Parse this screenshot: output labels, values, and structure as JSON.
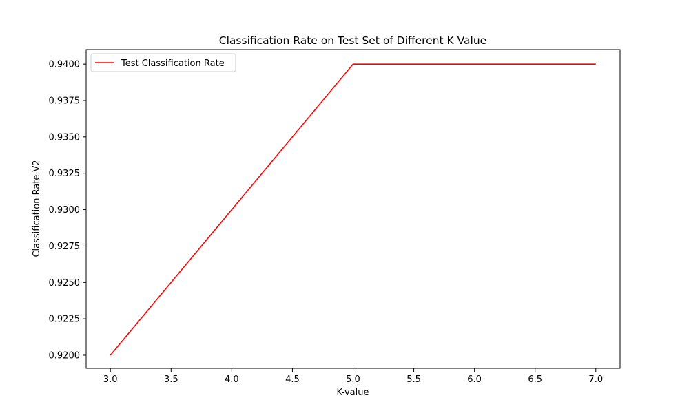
{
  "chart_data": {
    "type": "line",
    "title": "Classification Rate on Test Set of Different K Value",
    "xlabel": "K-value",
    "ylabel": "Classification Rate-V2",
    "xlim": [
      2.8,
      7.2
    ],
    "ylim": [
      0.9191,
      0.941
    ],
    "xticks": [
      3.0,
      3.5,
      4.0,
      4.5,
      5.0,
      5.5,
      6.0,
      6.5,
      7.0
    ],
    "xtick_labels": [
      "3.0",
      "3.5",
      "4.0",
      "4.5",
      "5.0",
      "5.5",
      "6.0",
      "6.5",
      "7.0"
    ],
    "yticks": [
      0.92,
      0.9225,
      0.925,
      0.9275,
      0.93,
      0.9325,
      0.935,
      0.9375,
      0.94
    ],
    "ytick_labels": [
      "0.9200",
      "0.9225",
      "0.9250",
      "0.9275",
      "0.9300",
      "0.9325",
      "0.9350",
      "0.9375",
      "0.9400"
    ],
    "grid": false,
    "legend_position": "top-left",
    "series": [
      {
        "name": "Test Classification Rate",
        "color": "#ff0000",
        "x": [
          3,
          5,
          7
        ],
        "y": [
          0.92,
          0.94,
          0.94
        ]
      }
    ]
  }
}
